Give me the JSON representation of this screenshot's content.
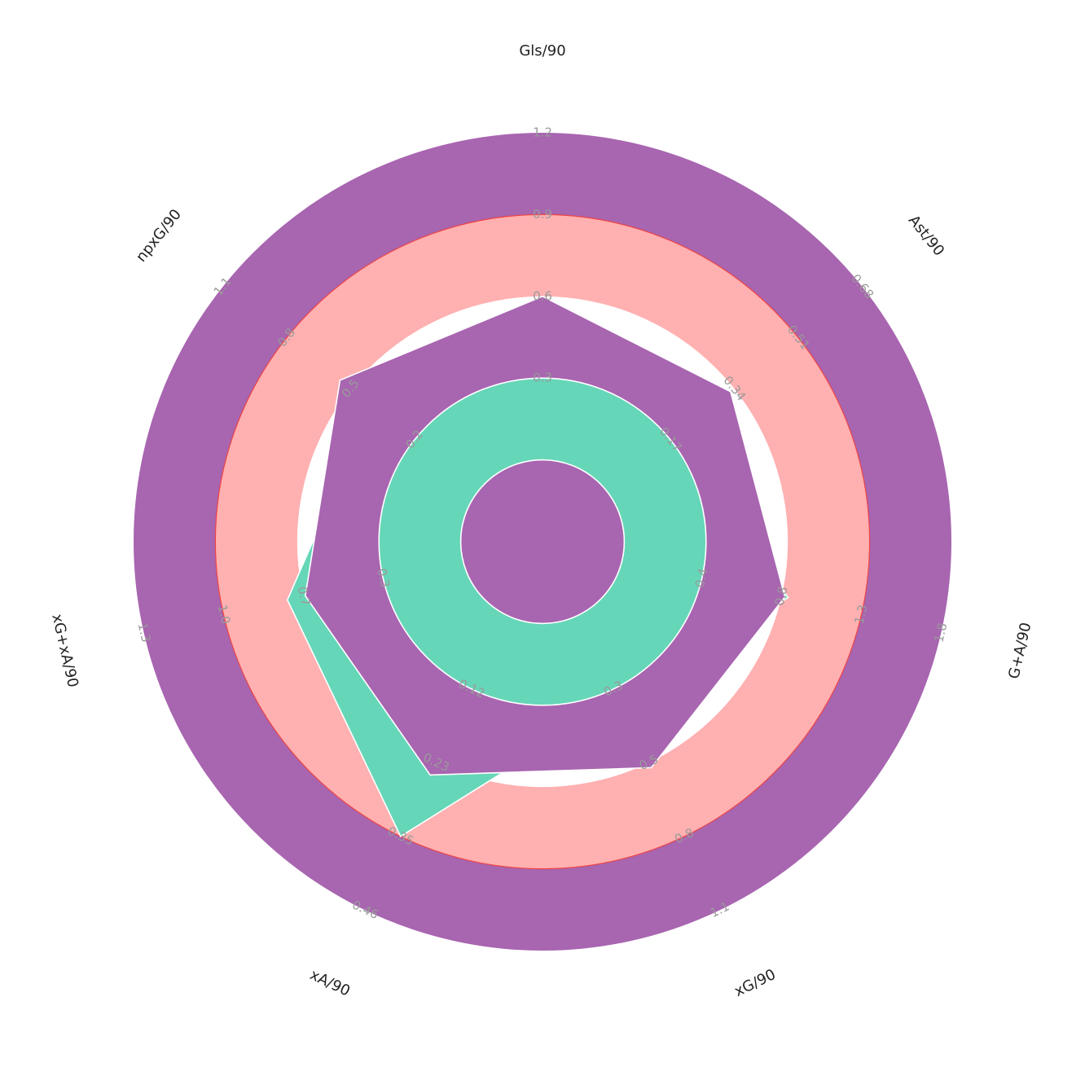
{
  "chart_data": {
    "type": "radar",
    "params": [
      "Gls/90",
      "Ast/90",
      "G+A/90",
      "xG/90",
      "xA/90",
      "xG+xA/90",
      "npxG/90"
    ],
    "range_labels": [
      [
        "0.3",
        "0.6",
        "0.9",
        "1.2"
      ],
      [
        "0.17",
        "0.34",
        "0.51",
        "0.68"
      ],
      [
        "0.4",
        "0.8",
        "1.3",
        "1.8"
      ],
      [
        "0.3",
        "0.5",
        "0.8",
        "1.1"
      ],
      [
        "0.12",
        "0.23",
        "0.35",
        "0.46"
      ],
      [
        "0.3",
        "0.7",
        "1.0",
        "1.3"
      ],
      [
        "0.2",
        "0.5",
        "0.8",
        "1.1"
      ]
    ],
    "series": [
      {
        "values": [
          0.6,
          0.33,
          0.82,
          0.52,
          0.25,
          0.69,
          0.55
        ]
      },
      {
        "values": [
          0.1,
          0.2,
          0.84,
          0.33,
          0.35,
          0.76,
          0.4
        ]
      }
    ],
    "rings": {
      "count": 5,
      "colors": [
        "#a865b0",
        "#66d6b8",
        "#ffffff",
        "#ffb0b1"
      ],
      "edge": "#ee4444"
    },
    "colors": {
      "series_1": "#a865b0",
      "series_2": "#66d6b8",
      "background": "#ffffff"
    }
  }
}
